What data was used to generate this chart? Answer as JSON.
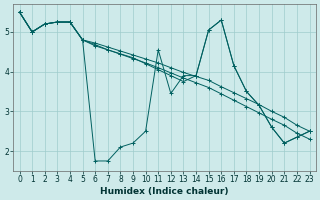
{
  "xlabel": "Humidex (Indice chaleur)",
  "ylabel": "",
  "background_color": "#ceeaea",
  "line_color": "#006060",
  "grid_color": "#a0cccc",
  "xlim": [
    -0.5,
    23.5
  ],
  "ylim": [
    1.5,
    5.7
  ],
  "xticks": [
    0,
    1,
    2,
    3,
    4,
    5,
    6,
    7,
    8,
    9,
    10,
    11,
    12,
    13,
    14,
    15,
    16,
    17,
    18,
    19,
    20,
    21,
    22,
    23
  ],
  "yticks": [
    2,
    3,
    4,
    5
  ],
  "lines": [
    {
      "x": [
        0,
        1,
        2,
        3,
        4,
        5,
        6,
        7,
        8,
        9,
        10,
        11,
        12,
        13,
        14,
        15,
        16,
        17,
        18,
        19,
        20,
        21,
        22,
        23
      ],
      "y": [
        5.5,
        5.0,
        5.2,
        5.25,
        5.25,
        4.8,
        1.75,
        1.75,
        2.1,
        2.2,
        2.5,
        4.55,
        3.45,
        3.9,
        3.9,
        5.05,
        5.3,
        4.15,
        3.5,
        3.15,
        2.6,
        2.2,
        2.35,
        2.5
      ]
    },
    {
      "x": [
        0,
        1,
        2,
        3,
        4,
        5,
        6,
        7,
        8,
        9,
        10,
        11,
        12,
        13,
        14,
        15,
        16,
        17,
        18,
        19,
        20,
        21,
        22,
        23
      ],
      "y": [
        5.5,
        5.0,
        5.2,
        5.25,
        5.25,
        4.8,
        4.72,
        4.62,
        4.52,
        4.42,
        4.32,
        4.22,
        4.1,
        3.98,
        3.88,
        3.78,
        3.62,
        3.47,
        3.32,
        3.17,
        3.0,
        2.85,
        2.65,
        2.5
      ]
    },
    {
      "x": [
        0,
        1,
        2,
        3,
        4,
        5,
        6,
        7,
        8,
        9,
        10,
        11,
        12,
        13,
        14,
        15,
        16,
        17,
        18,
        19,
        20,
        21,
        22,
        23
      ],
      "y": [
        5.5,
        5.0,
        5.2,
        5.25,
        5.25,
        4.8,
        4.68,
        4.55,
        4.44,
        4.33,
        4.22,
        4.1,
        3.97,
        3.84,
        3.72,
        3.6,
        3.44,
        3.28,
        3.12,
        2.96,
        2.8,
        2.65,
        2.45,
        2.3
      ]
    },
    {
      "x": [
        0,
        1,
        2,
        3,
        4,
        5,
        6,
        7,
        8,
        9,
        10,
        11,
        12,
        13,
        14,
        15,
        16,
        17,
        18,
        19,
        20,
        21,
        22,
        23
      ],
      "y": [
        5.5,
        5.0,
        5.2,
        5.25,
        5.25,
        4.8,
        4.65,
        4.55,
        4.45,
        4.35,
        4.2,
        4.05,
        3.9,
        3.75,
        3.9,
        5.05,
        5.3,
        4.15,
        3.5,
        3.15,
        2.6,
        2.2,
        2.35,
        2.5
      ]
    }
  ]
}
